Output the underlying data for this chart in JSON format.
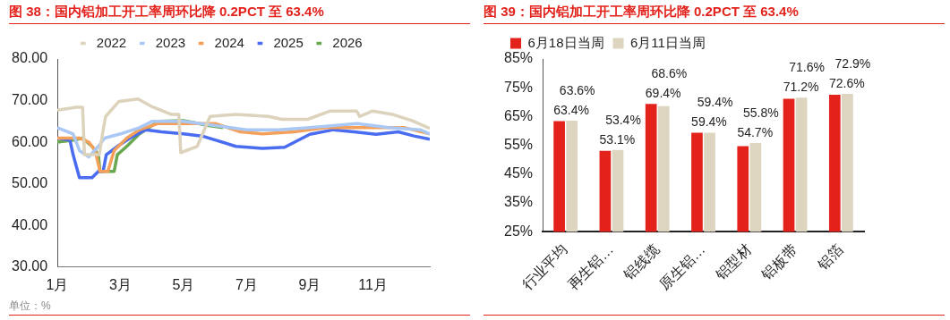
{
  "chart_data": [
    {
      "type": "line",
      "title": "图 38：国内铝加工开工率周环比降 0.2PCT 至 63.4%",
      "legend": "top",
      "grid": false,
      "marker": "none",
      "xlim": [
        1,
        12.8
      ],
      "xticks": [
        {
          "value": 1,
          "label": "1月"
        },
        {
          "value": 3,
          "label": "3月"
        },
        {
          "value": 5,
          "label": "5月"
        },
        {
          "value": 7,
          "label": "7月"
        },
        {
          "value": 9,
          "label": "9月"
        },
        {
          "value": 11,
          "label": "11月"
        }
      ],
      "ylim": [
        30,
        80
      ],
      "yticks": [
        {
          "value": 30,
          "label": "30.00"
        },
        {
          "value": 40,
          "label": "40.00"
        },
        {
          "value": 50,
          "label": "50.00"
        },
        {
          "value": 60,
          "label": "60.00"
        },
        {
          "value": 70,
          "label": "70.00"
        },
        {
          "value": 80,
          "label": "80.00"
        }
      ],
      "series": [
        {
          "name": "2022",
          "color": "#ddd3bd",
          "x": [
            1,
            1.6,
            1.8,
            1.86,
            2.33,
            2.43,
            2.53,
            2.95,
            3.56,
            3.98,
            4.29,
            4.6,
            4.85,
            4.91,
            5.43,
            5.84,
            6.66,
            7.69,
            8.11,
            8.93,
            9.65,
            10.48,
            10.58,
            10.99,
            11.61,
            12.23,
            12.8
          ],
          "values": [
            67.7,
            68.4,
            68.4,
            57,
            57,
            62,
            66.2,
            69.8,
            70.4,
            68.6,
            67.7,
            66.7,
            66.7,
            57.5,
            59,
            66.2,
            66.7,
            66.2,
            65.5,
            65.5,
            67.5,
            67.5,
            66.2,
            67.5,
            66.7,
            65.2,
            63.3
          ]
        },
        {
          "name": "2023",
          "color": "#a9c8f5",
          "x": [
            1,
            1.5,
            1.7,
            2.0,
            2.3,
            2.5,
            3.0,
            3.6,
            4.0,
            5.0,
            6,
            7,
            8,
            9,
            10.5,
            11.5,
            12.5,
            12.8
          ],
          "values": [
            63.5,
            62,
            58,
            56.5,
            59,
            61,
            62,
            63.5,
            65,
            65,
            64,
            63,
            63,
            63.5,
            64.5,
            63.5,
            63,
            62
          ]
        },
        {
          "name": "2024",
          "color": "#f5a05a",
          "x": [
            1,
            1.7,
            2.0,
            2.2,
            2.35,
            2.6,
            2.8,
            3.2,
            3.6,
            4.2,
            5,
            6,
            6.8,
            7.5,
            8.5,
            9.5,
            11,
            12,
            12.8
          ],
          "values": [
            61,
            61,
            60,
            58,
            53,
            53,
            58,
            61,
            63,
            64.5,
            64.5,
            64.5,
            62.5,
            62,
            62.5,
            63.5,
            63.5,
            63.5,
            62
          ]
        },
        {
          "name": "2025",
          "color": "#4a6cf0",
          "x": [
            1,
            1.4,
            1.5,
            1.7,
            2.1,
            2.3,
            2.45,
            2.55,
            2.9,
            3.3,
            3.8,
            4.3,
            5,
            5.63,
            6.66,
            7.5,
            8.2,
            9.0,
            9.75,
            10.4,
            11.1,
            11.8,
            12.3,
            12.8
          ],
          "values": [
            61,
            60.5,
            57,
            51.5,
            51.5,
            53,
            53,
            57,
            59,
            61,
            63,
            62.5,
            62,
            61.4,
            59,
            58.5,
            58.8,
            61.9,
            63,
            62.5,
            61.9,
            62.5,
            61.5,
            60.7
          ]
        },
        {
          "name": "2026",
          "color": "#6aa84f",
          "x": [
            1,
            1.5,
            1.8,
            2.1,
            2.3,
            2.35,
            2.8,
            2.9,
            3.2,
            3.6,
            3.9,
            4.2,
            5,
            5.8,
            6.25
          ],
          "values": [
            60,
            60.5,
            61,
            59,
            57,
            53,
            53,
            57,
            59,
            62,
            63.5,
            65,
            65.2,
            64,
            63.5
          ]
        }
      ],
      "annotations": [
        "单位：%"
      ]
    },
    {
      "type": "bar",
      "title": "图 39：国内铝加工开工率周环比降 0.2PCT 至 63.4%",
      "legend": "top",
      "grid": false,
      "categories": [
        "行业平均",
        "再生铝…",
        "铝线缆",
        "原生铝…",
        "铝型材",
        "铝板带",
        "铝箔"
      ],
      "ylim": [
        25,
        85
      ],
      "yticks": [
        {
          "value": 25,
          "label": "25%"
        },
        {
          "value": 35,
          "label": "35%"
        },
        {
          "value": 45,
          "label": "45%"
        },
        {
          "value": 55,
          "label": "55%"
        },
        {
          "value": 65,
          "label": "65%"
        },
        {
          "value": 75,
          "label": "75%"
        },
        {
          "value": 85,
          "label": "85%"
        }
      ],
      "series": [
        {
          "name": "6月18日当周",
          "color": "#e3221c",
          "values": [
            63.4,
            53.1,
            69.4,
            59.4,
            54.7,
            71.2,
            72.6
          ],
          "value_labels": [
            "63.4%",
            "53.1%",
            "69.4%",
            "59.4%",
            "54.7%",
            "71.2%",
            "72.6%"
          ]
        },
        {
          "name": "6月11日当周",
          "color": "#ddd5bf",
          "values": [
            63.6,
            53.4,
            68.6,
            59.4,
            55.8,
            71.6,
            72.9
          ],
          "value_labels": [
            "63.6%",
            "53.4%",
            "68.6%",
            "59.4%",
            "55.8%",
            "71.6%",
            "72.9%"
          ]
        }
      ]
    }
  ]
}
